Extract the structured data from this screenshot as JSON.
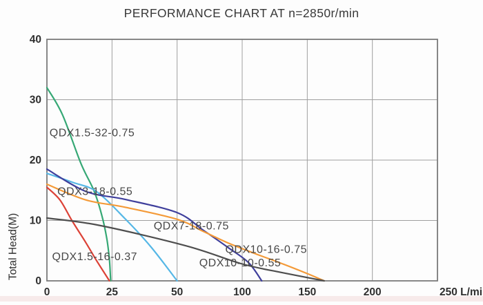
{
  "chart_data": {
    "type": "line",
    "title": "PERFORMANCE CHART AT n=2850r/min",
    "ylabel": "Total Head(M)",
    "x_unit": "L/min",
    "x_tick_values": [
      0,
      25,
      50,
      100,
      150,
      200,
      250
    ],
    "x_tick_labels": [
      "0",
      "25",
      "50",
      "100",
      "150",
      "200",
      "250 L/min"
    ],
    "x_axis_note": "ticks are equally spaced on screen (non-linear scale: 25,25,50,50,50,50)",
    "y_ticks": [
      0,
      10,
      20,
      30,
      40
    ],
    "ylim": [
      0,
      40
    ],
    "xlim": [
      0,
      250
    ],
    "grid": true,
    "legend_position": "labels-on-curves",
    "axis_colors": {
      "grid": "#9e9e9e",
      "border": "#7a7a7a"
    },
    "series": [
      {
        "name": "QDX1.5-32-0.75",
        "color": "#36a875",
        "points": [
          [
            0,
            32
          ],
          [
            6,
            27.5
          ],
          [
            13,
            19.5
          ],
          [
            18,
            15
          ],
          [
            21,
            11
          ],
          [
            23,
            7
          ],
          [
            24,
            3.5
          ],
          [
            24.5,
            0
          ]
        ]
      },
      {
        "name": "QDX1.5-16-0.37",
        "color": "#dc4237",
        "points": [
          [
            0,
            15.5
          ],
          [
            5,
            13.4
          ],
          [
            9.6,
            10
          ],
          [
            15,
            6.3
          ],
          [
            19,
            3.4
          ],
          [
            24,
            0
          ]
        ]
      },
      {
        "name": "QDX3-18-0.55",
        "color": "#55b7e6",
        "points": [
          [
            0,
            17.8
          ],
          [
            10,
            16.3
          ],
          [
            19,
            14.8
          ],
          [
            30,
            10.3
          ],
          [
            40,
            5.6
          ],
          [
            50,
            0
          ]
        ]
      },
      {
        "name": "QDX7-18-0.75",
        "color": "#3f3f9c",
        "points": [
          [
            0,
            18.5
          ],
          [
            15,
            14.8
          ],
          [
            30,
            13.5
          ],
          [
            50,
            11.3
          ],
          [
            70,
            8.4
          ],
          [
            90,
            5.4
          ],
          [
            105,
            3
          ],
          [
            115,
            0
          ]
        ]
      },
      {
        "name": "QDX10-16-0.75",
        "color": "#f49a38",
        "points": [
          [
            0,
            16
          ],
          [
            15,
            13.4
          ],
          [
            30,
            12.2
          ],
          [
            50,
            10.2
          ],
          [
            70,
            8.2
          ],
          [
            90,
            6.2
          ],
          [
            110,
            4.5
          ],
          [
            130,
            2.9
          ],
          [
            150,
            1.2
          ],
          [
            163,
            0
          ]
        ]
      },
      {
        "name": "QDX10-10-0.55",
        "color": "#4e4e4e",
        "points": [
          [
            0,
            10.4
          ],
          [
            20,
            9.2
          ],
          [
            57,
            5.8
          ],
          [
            100,
            2.8
          ],
          [
            130,
            1.4
          ],
          [
            163,
            0
          ]
        ]
      }
    ],
    "annotations": [
      {
        "text": "QDX1.5-32-0.75",
        "x": 1,
        "y": 24.5
      },
      {
        "text": "QDX3-18-0.55",
        "x": 4,
        "y": 14.8
      },
      {
        "text": "QDX7-18-0.75",
        "x": 41,
        "y": 9.1
      },
      {
        "text": "QDX10-16-0.75",
        "x": 87,
        "y": 5.2
      },
      {
        "text": "QDX10-10-0.55",
        "x": 67,
        "y": 3.0
      },
      {
        "text": "QDX1.5-16-0.37",
        "x": 2,
        "y": 4.0
      }
    ]
  }
}
